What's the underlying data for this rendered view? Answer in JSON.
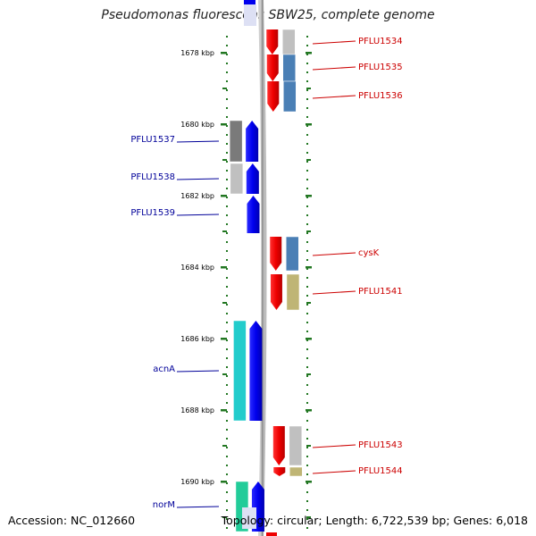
{
  "title": "Pseudomonas fluorescens SBW25, complete genome",
  "footer": {
    "accession": "Accession: NC_012660",
    "summary": "Topology: circular; Length: 6,722,539 bp; Genes: 6,018"
  },
  "colors": {
    "forward_label": "#cc0000",
    "reverse_label": "#000099",
    "backbone": "#999999",
    "tick": "#227722"
  },
  "tick_labels": [
    {
      "text": "1678 kbp",
      "kbp": 1678
    },
    {
      "text": "1680 kbp",
      "kbp": 1680
    },
    {
      "text": "1682 kbp",
      "kbp": 1682
    },
    {
      "text": "1684 kbp",
      "kbp": 1684
    },
    {
      "text": "1686 kbp",
      "kbp": 1686
    },
    {
      "text": "1688 kbp",
      "kbp": 1688
    },
    {
      "text": "1690 kbp",
      "kbp": 1690
    }
  ],
  "genes_forward": [
    {
      "label": "PFLU1534",
      "start_kbp": 1677.35,
      "end_kbp": 1678.05,
      "cog_color": "#c0c0c0"
    },
    {
      "label": "PFLU1535",
      "start_kbp": 1678.05,
      "end_kbp": 1678.8,
      "cog_color": "#4a7fb5"
    },
    {
      "label": "PFLU1536",
      "start_kbp": 1678.8,
      "end_kbp": 1679.65,
      "cog_color": "#4a7fb5"
    },
    {
      "label": "cysK",
      "start_kbp": 1683.15,
      "end_kbp": 1684.1,
      "cog_color": "#4a7fb5"
    },
    {
      "label": "PFLU1541",
      "start_kbp": 1684.2,
      "end_kbp": 1685.2,
      "cog_color": "#bfb575"
    },
    {
      "label": "PFLU1543",
      "start_kbp": 1688.45,
      "end_kbp": 1689.55,
      "cog_color": "#c0c0c0"
    },
    {
      "label": "PFLU1544",
      "start_kbp": 1689.6,
      "end_kbp": 1689.85,
      "cog_color": "#bfb575"
    }
  ],
  "genes_reverse": [
    {
      "label": "PFLU1537",
      "start_kbp": 1679.9,
      "end_kbp": 1681.05,
      "cog_color": "#7a7a7a"
    },
    {
      "label": "PFLU1538",
      "start_kbp": 1681.1,
      "end_kbp": 1681.95,
      "cog_color": "#c0c0c0"
    },
    {
      "label": "PFLU1539",
      "start_kbp": 1682.0,
      "end_kbp": 1683.05,
      "cog_color": ""
    },
    {
      "label": "acnA",
      "start_kbp": 1685.5,
      "end_kbp": 1688.3,
      "cog_color": "#22cccc"
    },
    {
      "label": "norM",
      "start_kbp": 1690.0,
      "end_kbp": 1691.4,
      "cog_color": "#22cc99"
    }
  ]
}
